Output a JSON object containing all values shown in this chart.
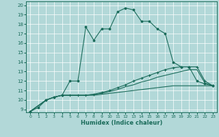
{
  "xlabel": "Humidex (Indice chaleur)",
  "background_color": "#b2d8d8",
  "grid_color": "#ffffff",
  "line_color": "#1a6b5a",
  "xlim": [
    -0.5,
    23.5
  ],
  "ylim": [
    8.7,
    20.4
  ],
  "xticks": [
    0,
    1,
    2,
    3,
    4,
    5,
    6,
    7,
    8,
    9,
    10,
    11,
    12,
    13,
    14,
    15,
    16,
    17,
    18,
    19,
    20,
    21,
    22,
    23
  ],
  "yticks": [
    9,
    10,
    11,
    12,
    13,
    14,
    15,
    16,
    17,
    18,
    19,
    20
  ],
  "line1_x": [
    0,
    1,
    2,
    3,
    4,
    5,
    6,
    7,
    8,
    9,
    10,
    11,
    12,
    13,
    14,
    15,
    16,
    17,
    18,
    19,
    20,
    21,
    22,
    23
  ],
  "line1_y": [
    8.8,
    9.2,
    10.0,
    10.3,
    10.5,
    12.0,
    12.0,
    17.7,
    16.3,
    17.5,
    17.5,
    19.3,
    19.7,
    19.5,
    18.3,
    18.3,
    17.5,
    17.0,
    14.0,
    13.5,
    13.5,
    12.0,
    11.7,
    11.5
  ],
  "line2_x": [
    0,
    2,
    3,
    4,
    5,
    6,
    7,
    8,
    9,
    10,
    11,
    12,
    13,
    14,
    15,
    16,
    17,
    18,
    19,
    20,
    21,
    22,
    23
  ],
  "line2_y": [
    8.8,
    10.0,
    10.3,
    10.5,
    10.5,
    10.5,
    10.5,
    10.6,
    10.8,
    11.0,
    11.3,
    11.6,
    12.0,
    12.3,
    12.6,
    12.9,
    13.2,
    13.4,
    13.5,
    13.5,
    13.5,
    12.0,
    11.5
  ],
  "line3_x": [
    0,
    2,
    3,
    4,
    5,
    6,
    7,
    8,
    9,
    10,
    11,
    12,
    13,
    14,
    15,
    16,
    17,
    18,
    19,
    20,
    21,
    22,
    23
  ],
  "line3_y": [
    8.8,
    10.0,
    10.3,
    10.5,
    10.5,
    10.5,
    10.5,
    10.6,
    10.7,
    10.9,
    11.1,
    11.4,
    11.6,
    11.9,
    12.1,
    12.4,
    12.6,
    12.8,
    13.0,
    13.2,
    13.2,
    11.8,
    11.5
  ],
  "line4_x": [
    0,
    2,
    3,
    4,
    5,
    6,
    7,
    8,
    9,
    10,
    11,
    12,
    13,
    14,
    15,
    16,
    17,
    18,
    19,
    20,
    21,
    22,
    23
  ],
  "line4_y": [
    8.8,
    10.0,
    10.3,
    10.5,
    10.5,
    10.5,
    10.5,
    10.5,
    10.6,
    10.7,
    10.8,
    10.9,
    11.0,
    11.1,
    11.2,
    11.3,
    11.4,
    11.5,
    11.5,
    11.5,
    11.5,
    11.5,
    11.5
  ]
}
